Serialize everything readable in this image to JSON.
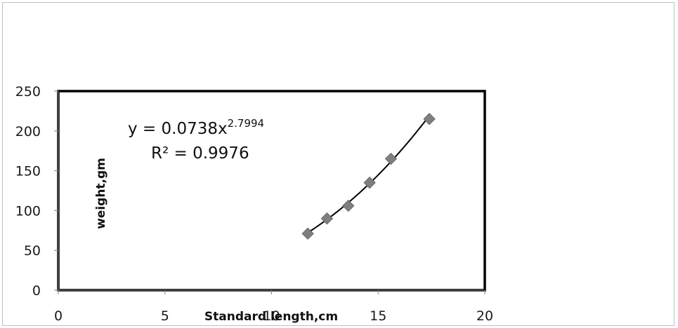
{
  "chart_data": {
    "type": "scatter",
    "title": "",
    "xlabel": "Standard length,cm",
    "ylabel": "weight,gm",
    "xlim": [
      0,
      20
    ],
    "ylim": [
      0,
      250
    ],
    "xticks": [
      0,
      5,
      10,
      15,
      20
    ],
    "yticks": [
      0,
      50,
      100,
      150,
      200,
      250
    ],
    "grid": false,
    "legend": "none",
    "series": [
      {
        "x": [
          11.7,
          12.6,
          13.6,
          14.6,
          15.6,
          17.4
        ],
        "y": [
          71,
          90,
          106,
          135,
          165,
          215
        ],
        "marker": "diamond",
        "color": "#7f7f7f"
      }
    ],
    "trendline": {
      "type": "power",
      "a": 0.0738,
      "b": 2.7994,
      "equation_text": "y = 0.0738x",
      "exponent_text": "2.7994",
      "r2_text": "R² = 0.9976",
      "color": "#000000"
    }
  }
}
